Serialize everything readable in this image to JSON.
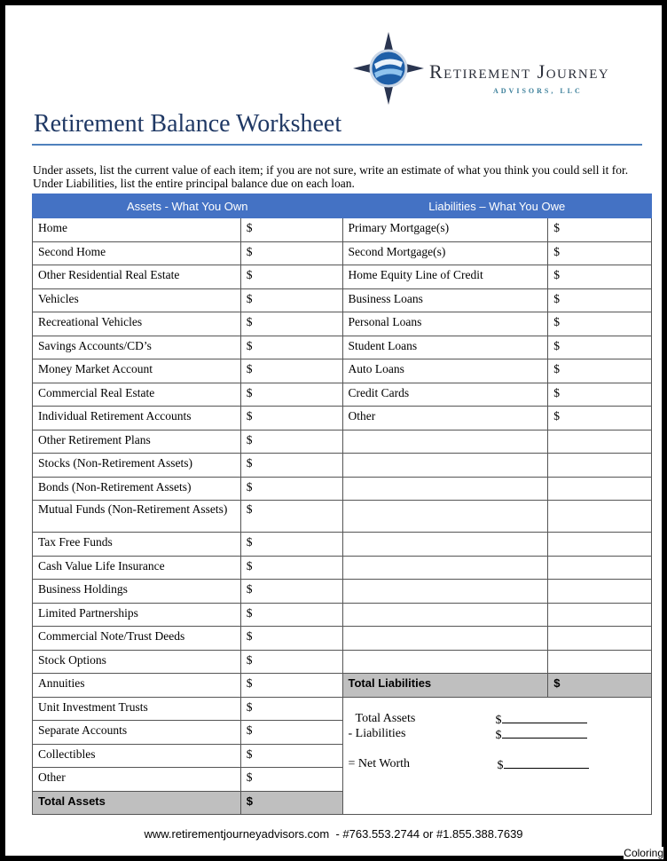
{
  "logo": {
    "name": "Retirement Journey",
    "subtitle": "ADVISORS, LLC"
  },
  "title": "Retirement Balance Worksheet",
  "intro": "Under assets, list the current value of each item; if you are not sure, write an estimate of what you think you could sell it for. Under Liabilities, list the entire principal balance due on each loan.",
  "assets": {
    "header": "Assets  - What You Own",
    "items": [
      "Home",
      "Second Home",
      "Other Residential Real Estate",
      "Vehicles",
      "Recreational Vehicles",
      "Savings Accounts/CD’s",
      "Money Market Account",
      "Commercial Real Estate",
      "Individual Retirement Accounts",
      "Other Retirement Plans",
      "Stocks (Non-Retirement Assets)",
      "Bonds (Non-Retirement Assets)",
      "Mutual Funds (Non-Retirement Assets)",
      "Tax Free Funds",
      "Cash Value Life Insurance",
      "Business Holdings",
      "Limited Partnerships",
      "Commercial Note/Trust Deeds",
      "Stock Options",
      "Annuities",
      "Unit Investment Trusts",
      "Separate Accounts",
      "Collectibles",
      "Other"
    ],
    "total": "Total Assets"
  },
  "liabilities": {
    "header": "Liabilities – What You Owe",
    "items": [
      "Primary Mortgage(s)",
      "Second Mortgage(s)",
      "Home Equity Line of Credit",
      "Business Loans",
      "Personal Loans",
      "Student Loans",
      "Auto Loans",
      "Credit Cards",
      "Other"
    ],
    "total": "Total Liabilities"
  },
  "currency": "$",
  "net_worth": {
    "total_assets": "Total Assets",
    "liabilities": "- Liabilities",
    "net_worth": "= Net Worth"
  },
  "footer": {
    "website": "www.retirementjourneyadvisors.com",
    "phones": "-  #763.553.2744 or #1.855.388.7639"
  },
  "watermark": "Coloring",
  "colors": {
    "header_bg": "#4472c4",
    "total_bg": "#bfbfbf",
    "title": "#1f3864"
  }
}
